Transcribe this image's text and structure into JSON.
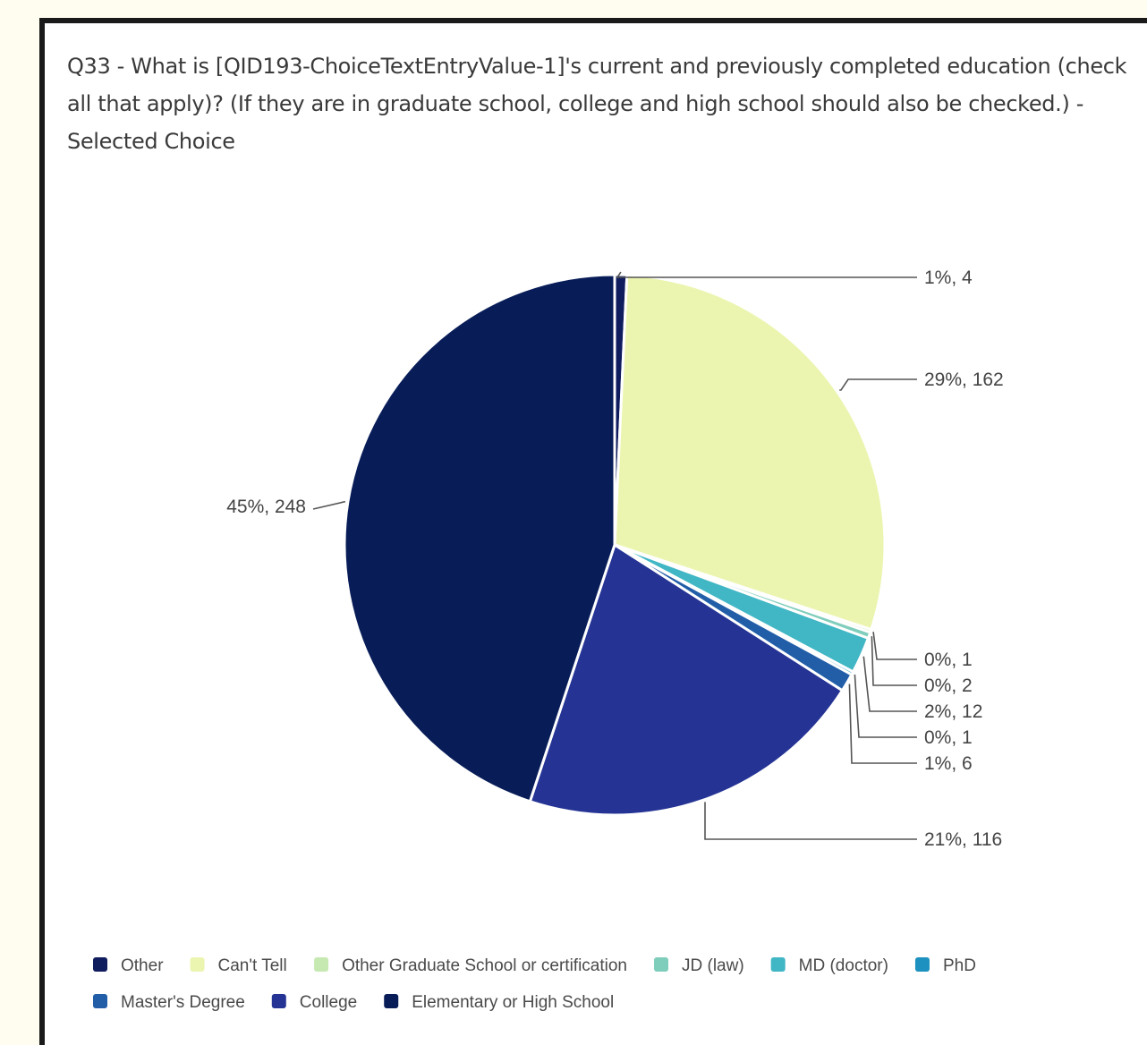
{
  "chart_data": {
    "type": "pie",
    "title": "Q33 - What is [QID193-ChoiceTextEntryValue-1]'s current and previously completed education (check all that apply)? (If they are in graduate school, college and high school should also be checked.) - Selected Choice",
    "slices": [
      {
        "name": "Other",
        "value": 4,
        "percent": "1%",
        "label": "1%, 4",
        "color": "#0f1c5e"
      },
      {
        "name": "Can't Tell",
        "value": 162,
        "percent": "29%",
        "label": "29%, 162",
        "color": "#ecf5b0"
      },
      {
        "name": "Other Graduate School or certification",
        "value": 1,
        "percent": "0%",
        "label": "0%, 1",
        "color": "#c6e9b2"
      },
      {
        "name": "JD (law)",
        "value": 2,
        "percent": "0%",
        "label": "0%, 2",
        "color": "#7fcdbb"
      },
      {
        "name": "MD (doctor)",
        "value": 12,
        "percent": "2%",
        "label": "2%, 12",
        "color": "#41b6c4"
      },
      {
        "name": "PhD",
        "value": 1,
        "percent": "0%",
        "label": "0%, 1",
        "color": "#1d91c0"
      },
      {
        "name": "Master's Degree",
        "value": 6,
        "percent": "1%",
        "label": "1%, 6",
        "color": "#225ea8"
      },
      {
        "name": "College",
        "value": 116,
        "percent": "21%",
        "label": "21%, 116",
        "color": "#253494"
      },
      {
        "name": "Elementary or High School",
        "value": 248,
        "percent": "45%",
        "label": "45%, 248",
        "color": "#081d58"
      }
    ],
    "legend_position": "bottom"
  }
}
